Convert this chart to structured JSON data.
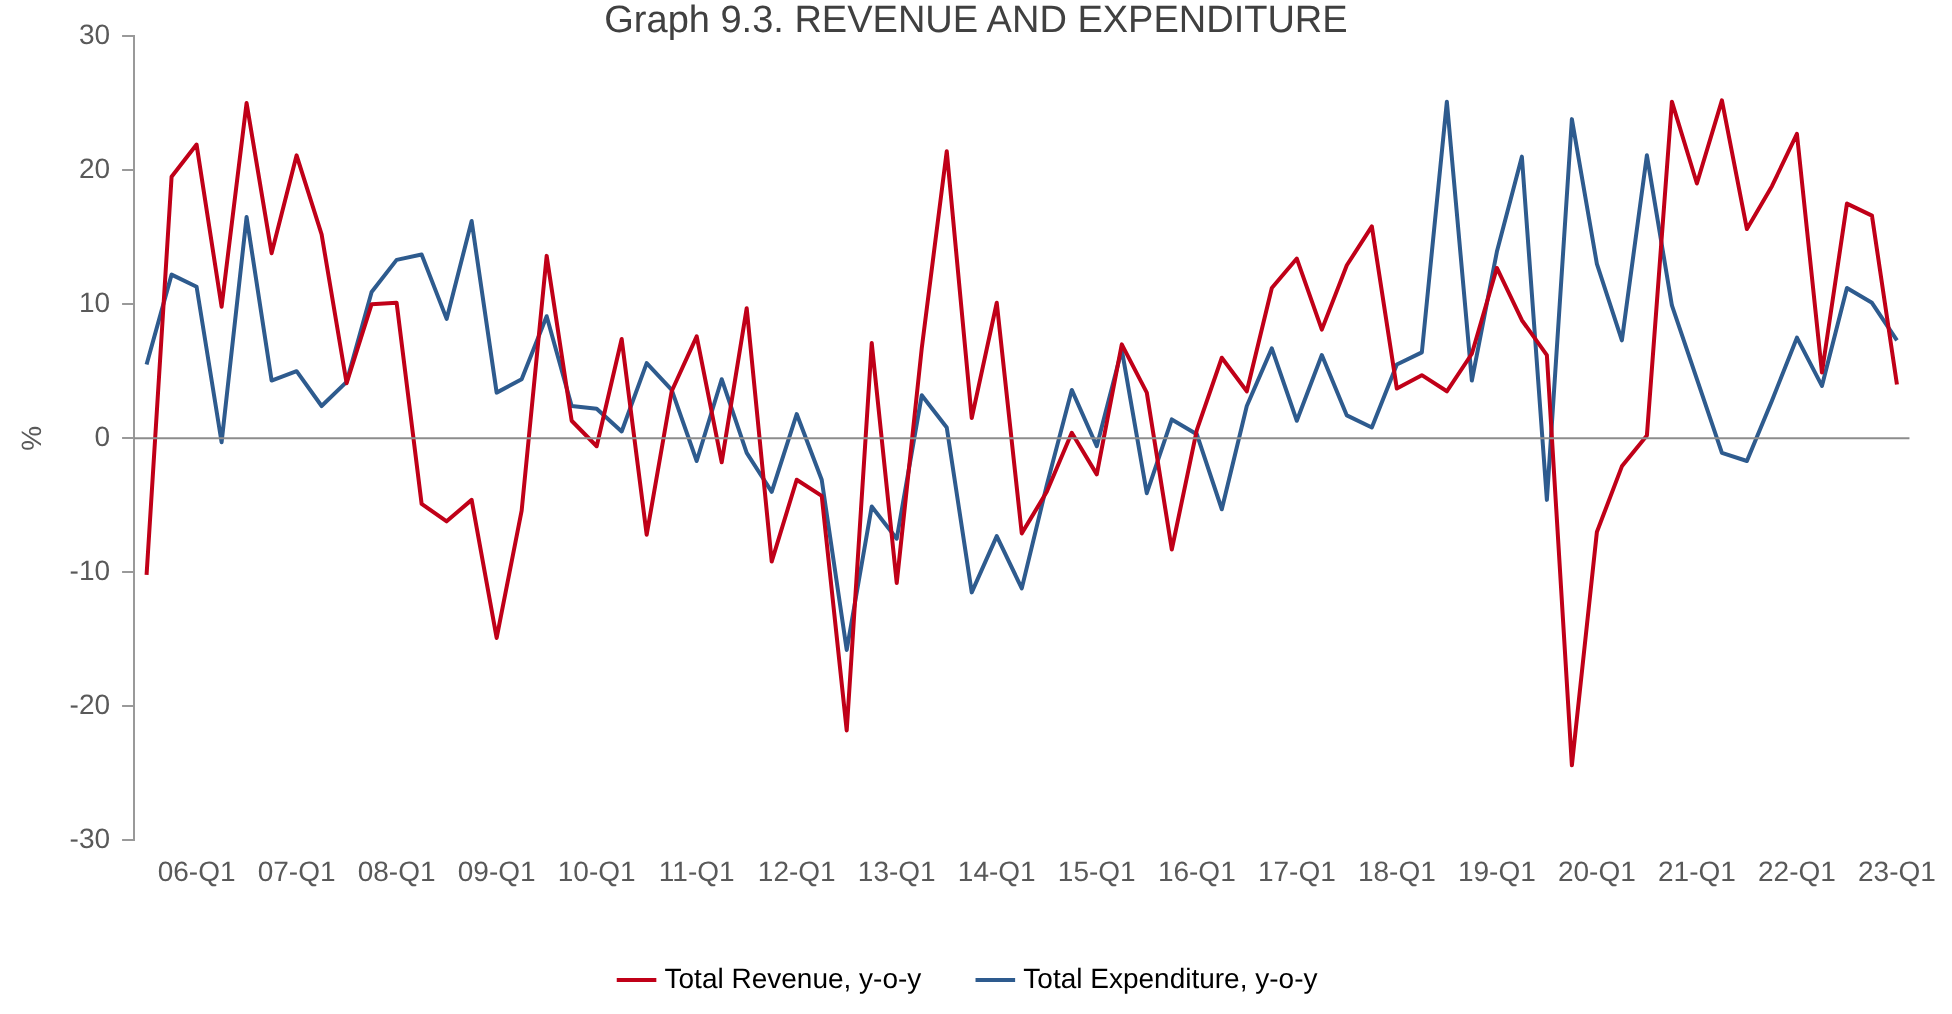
{
  "chart_data": {
    "type": "line",
    "title": "Graph 9.3. REVENUE AND EXPENDITURE",
    "ylabel": "%",
    "categories": [
      null,
      null,
      "06-Q1",
      null,
      null,
      null,
      "07-Q1",
      null,
      null,
      null,
      "08-Q1",
      null,
      null,
      null,
      "09-Q1",
      null,
      null,
      null,
      "10-Q1",
      null,
      null,
      null,
      "11-Q1",
      null,
      null,
      null,
      "12-Q1",
      null,
      null,
      null,
      "13-Q1",
      null,
      null,
      null,
      "14-Q1",
      null,
      null,
      null,
      "15-Q1",
      null,
      null,
      null,
      "16-Q1",
      null,
      null,
      null,
      "17-Q1",
      null,
      null,
      null,
      "18-Q1",
      null,
      null,
      null,
      "19-Q1",
      null,
      null,
      null,
      "20-Q1",
      null,
      null,
      null,
      "21-Q1",
      null,
      null,
      null,
      "22-Q1",
      null,
      null,
      null,
      "23-Q1"
    ],
    "series": [
      {
        "name": "Total Revenue, y-o-y",
        "color": "#c00018",
        "values": [
          -10.2,
          19.5,
          21.9,
          9.8,
          25.0,
          13.8,
          21.1,
          15.2,
          4.1,
          10.0,
          10.1,
          -4.9,
          -6.2,
          -4.6,
          -14.9,
          -5.4,
          13.6,
          1.3,
          -0.6,
          7.4,
          -7.2,
          3.5,
          7.6,
          -1.8,
          9.7,
          -9.2,
          -3.1,
          -4.3,
          -21.8,
          7.1,
          -10.8,
          6.7,
          21.4,
          1.5,
          10.1,
          -7.1,
          -4.0,
          0.4,
          -2.7,
          7.0,
          3.4,
          -8.3,
          0.6,
          6.0,
          3.5,
          11.2,
          13.4,
          8.1,
          12.9,
          15.8,
          3.7,
          4.7,
          3.5,
          6.3,
          12.7,
          8.8,
          6.2,
          -24.4,
          -7.0,
          -2.1,
          0.2,
          25.1,
          19.0,
          25.2,
          15.6,
          18.8,
          22.7,
          4.9,
          17.5,
          16.6,
          4.0
        ]
      },
      {
        "name": "Total Expenditure, y-o-y",
        "color": "#2e5b8e",
        "values": [
          5.5,
          12.2,
          11.3,
          -0.3,
          16.5,
          4.3,
          5.0,
          2.4,
          4.2,
          10.9,
          13.3,
          13.7,
          8.9,
          16.2,
          3.4,
          4.4,
          9.1,
          2.4,
          2.2,
          0.5,
          5.6,
          3.6,
          -1.7,
          4.4,
          -1.1,
          -4.0,
          1.8,
          -3.1,
          -15.8,
          -5.1,
          -7.5,
          3.2,
          0.8,
          -11.5,
          -7.3,
          -11.2,
          -3.5,
          3.6,
          -0.6,
          6.6,
          -4.1,
          1.4,
          0.3,
          -5.3,
          2.4,
          6.7,
          1.3,
          6.2,
          1.7,
          0.8,
          5.5,
          6.4,
          25.1,
          4.3,
          13.9,
          21.0,
          -4.6,
          23.8,
          13.0,
          7.3,
          21.1,
          9.9,
          4.4,
          -1.1,
          -1.7,
          2.8,
          7.5,
          3.9,
          11.2,
          10.1,
          7.3
        ]
      }
    ],
    "ylim": [
      -30,
      30
    ],
    "yticks": [
      -30,
      -20,
      -10,
      0,
      10,
      20,
      30
    ],
    "ref_lines": [
      {
        "axis": "y",
        "value": 0,
        "color": "#8c8c8c"
      }
    ],
    "grid": false,
    "legend": "bottom",
    "marker": "none",
    "line_style": "solid"
  }
}
